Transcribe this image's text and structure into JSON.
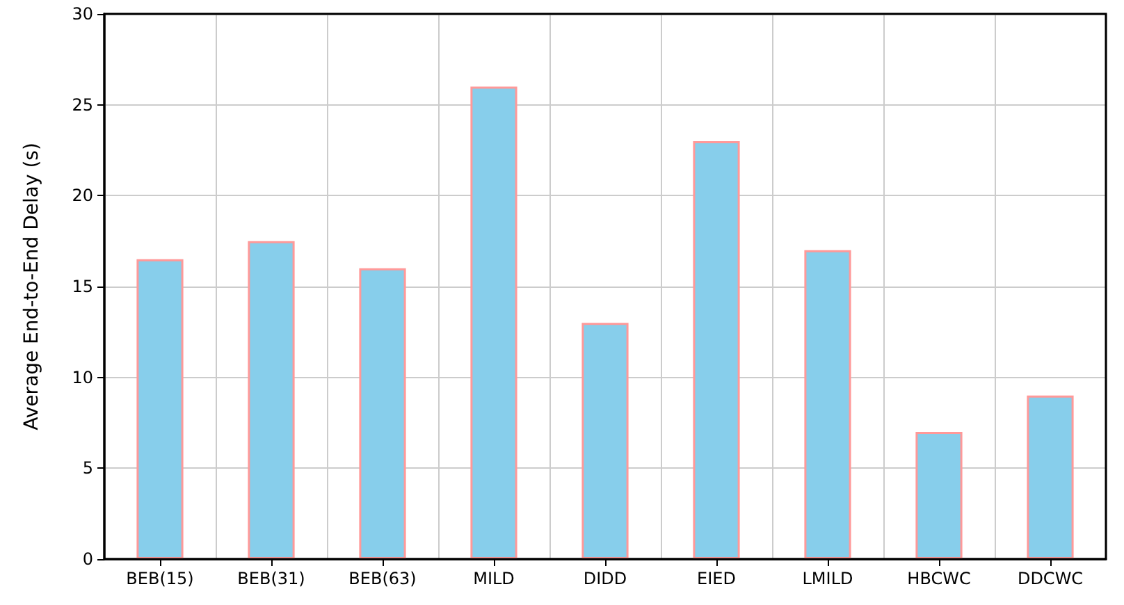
{
  "chart_data": {
    "type": "bar",
    "ylabel": "Average End-to-End Delay (s)",
    "categories": [
      "BEB(15)",
      "BEB(31)",
      "BEB(63)",
      "MILD",
      "DIDD",
      "EIED",
      "LMILD",
      "HBCWC",
      "DDCWC"
    ],
    "values": [
      16.5,
      17.5,
      16,
      26,
      13,
      23,
      17,
      7,
      9
    ],
    "color": "#87ceeb",
    "ylim": [
      0,
      30
    ],
    "yticks": [
      0,
      5,
      10,
      15,
      20,
      25,
      30
    ],
    "grid": true
  }
}
